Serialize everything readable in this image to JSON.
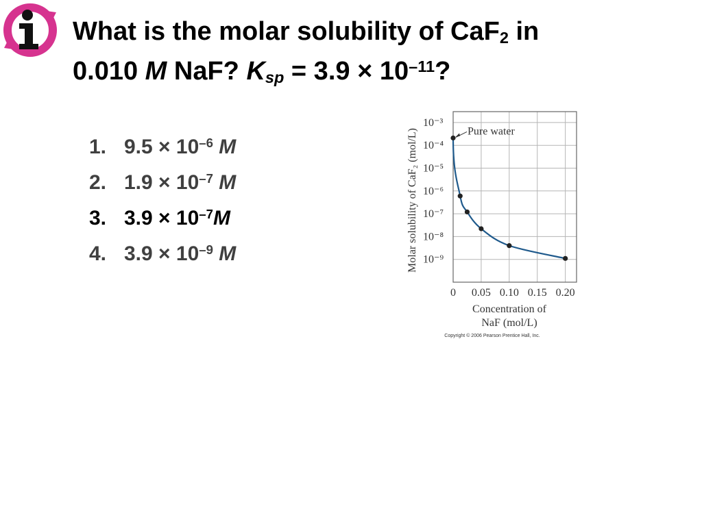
{
  "title": {
    "lines": [
      [
        {
          "text": "What is the molar solubility of CaF",
          "style": "normal"
        },
        {
          "text": "2",
          "style": "sub"
        },
        {
          "text": " in",
          "style": "normal"
        }
      ],
      [
        {
          "text": "0.010 ",
          "style": "normal"
        },
        {
          "text": "M",
          "style": "italic"
        },
        {
          "text": " NaF? ",
          "style": "normal"
        },
        {
          "text": "K",
          "style": "italic"
        },
        {
          "text": "sp",
          "style": "italic-sub"
        },
        {
          "text": " = 3.9 × 10",
          "style": "normal"
        },
        {
          "text": "–11",
          "style": "sup"
        },
        {
          "text": "?",
          "style": "normal"
        }
      ]
    ]
  },
  "answers": [
    {
      "number": "1.",
      "color": "#404040",
      "runs": [
        {
          "text": "9.5 × 10",
          "style": "normal"
        },
        {
          "text": "–6",
          "style": "sup"
        },
        {
          "text": " M",
          "style": "italic"
        }
      ]
    },
    {
      "number": "2.",
      "color": "#404040",
      "runs": [
        {
          "text": "1.9 × 10",
          "style": "normal"
        },
        {
          "text": "–7",
          "style": "sup"
        },
        {
          "text": " M",
          "style": "italic"
        }
      ]
    },
    {
      "number": "3.",
      "color": "#000000",
      "runs": [
        {
          "text": "3.9 × 10",
          "style": "normal"
        },
        {
          "text": "–7",
          "style": "sup"
        },
        {
          "text": "M",
          "style": "italic"
        }
      ]
    },
    {
      "number": "4.",
      "color": "#404040",
      "runs": [
        {
          "text": "3.9 × 10",
          "style": "normal"
        },
        {
          "text": "–9",
          "style": "sup"
        },
        {
          "text": " M",
          "style": "italic"
        }
      ]
    }
  ],
  "chart_data": {
    "type": "line",
    "x": [
      0,
      0.0125,
      0.025,
      0.05,
      0.1,
      0.2
    ],
    "series": [
      {
        "color": "#1f5a8c",
        "marker_color": "#222222",
        "values": [
          0.00021,
          6e-07,
          1.2e-07,
          2.2e-08,
          4e-09,
          1.1e-09
        ]
      }
    ],
    "ylog": true,
    "xlim": [
      0,
      0.22
    ],
    "ylim": [
      1e-10,
      0.003
    ],
    "xticks": [
      0,
      0.05,
      {
        "value": 0.1,
        "label": "0.10"
      },
      0.15,
      {
        "value": 0.2,
        "label": "0.20"
      }
    ],
    "yticks": [
      {
        "value": 0.001,
        "label": "10⁻³"
      },
      {
        "value": 0.0001,
        "label": "10⁻⁴"
      },
      {
        "value": 1e-05,
        "label": "10⁻⁵"
      },
      {
        "value": 1e-06,
        "label": "10⁻⁶"
      },
      {
        "value": 1e-07,
        "label": "10⁻⁷"
      },
      {
        "value": 1e-08,
        "label": "10⁻⁸"
      },
      {
        "value": 1e-09,
        "label": "10⁻⁹"
      }
    ],
    "grid": true,
    "ylabel": "Molar solubility of CaF₂ (mol/L)",
    "xlabel": [
      "Concentration of",
      "NaF (mol/L)"
    ],
    "annotation": "Pure water",
    "credit": "Copyright © 2006 Pearson Prentice Hall, Inc."
  }
}
